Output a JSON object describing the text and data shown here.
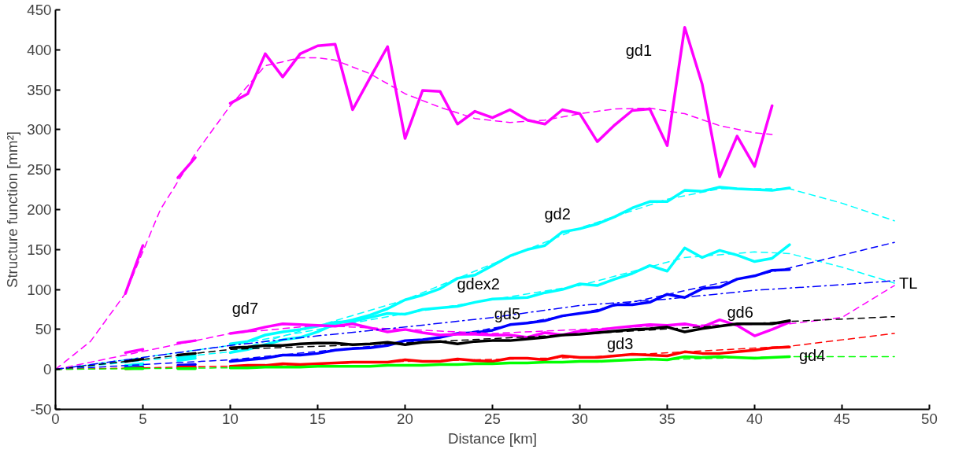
{
  "chart_data": {
    "type": "line",
    "xlabel": "Distance [km]",
    "ylabel": "Structure function [mm²]",
    "xlim": [
      0,
      50
    ],
    "xticks": [
      0,
      5,
      10,
      15,
      20,
      25,
      30,
      35,
      40,
      45,
      50
    ],
    "ylim": [
      -50,
      450
    ],
    "yticks": [
      -50,
      0,
      50,
      100,
      150,
      200,
      250,
      300,
      350,
      400,
      450
    ],
    "grid": false,
    "marker": "none",
    "series": [
      {
        "name": "gd1",
        "color": "#ff00ff",
        "line_style": "solid",
        "x": [
          10,
          11,
          12,
          13,
          14,
          15,
          16,
          17,
          18,
          19,
          20,
          21,
          22,
          23,
          24,
          25,
          26,
          27,
          28,
          29,
          30,
          31,
          32,
          33,
          34,
          35,
          36,
          37,
          38,
          39,
          40,
          41
        ],
        "values": [
          333,
          345,
          395,
          366,
          395,
          405,
          407,
          325,
          365,
          404,
          289,
          349,
          348,
          307,
          323,
          315,
          325,
          312,
          307,
          325,
          320,
          285,
          306,
          324,
          326,
          280,
          428,
          357,
          241,
          292,
          254,
          330
        ]
      },
      {
        "color": "#ff00ff",
        "line_style": "dashed",
        "x": [
          0,
          2,
          4,
          6,
          8,
          10,
          12,
          14,
          15,
          16,
          18,
          20,
          22,
          24,
          26,
          28,
          30,
          32,
          34,
          36,
          38,
          40,
          41
        ],
        "values": [
          0,
          35,
          95,
          200,
          270,
          330,
          380,
          390,
          390,
          387,
          370,
          345,
          328,
          314,
          309,
          312,
          320,
          326,
          327,
          320,
          305,
          296,
          294
        ]
      },
      {
        "color": "#ff00ff",
        "line_style": "solid",
        "x": [
          4,
          5
        ],
        "values": [
          95,
          155
        ]
      },
      {
        "color": "#ff00ff",
        "line_style": "solid",
        "x": [
          7,
          8
        ],
        "values": [
          240,
          265
        ]
      },
      {
        "name": "gd2",
        "color": "#00ffff",
        "line_style": "solid",
        "x": [
          10,
          11,
          12,
          13,
          14,
          15,
          16,
          17,
          18,
          19,
          20,
          21,
          22,
          23,
          24,
          25,
          26,
          27,
          28,
          29,
          30,
          31,
          32,
          33,
          34,
          35,
          36,
          37,
          38,
          39,
          40,
          41,
          42
        ],
        "values": [
          21,
          25,
          31,
          37,
          40,
          47,
          57,
          62,
          68,
          76,
          87,
          93,
          101,
          114,
          118,
          130,
          142,
          150,
          155,
          172,
          176,
          182,
          191,
          202,
          210,
          210,
          224,
          223,
          228,
          226,
          225,
          224,
          227
        ]
      },
      {
        "color": "#00ffff",
        "line_style": "dashed",
        "x": [
          0,
          10,
          20,
          30,
          35,
          38,
          42,
          45,
          48
        ],
        "values": [
          0,
          22,
          87,
          177,
          213,
          226,
          226,
          208,
          186
        ]
      },
      {
        "color": "#00ffff",
        "line_style": "solid",
        "x": [
          4,
          5
        ],
        "values": [
          3,
          6
        ]
      },
      {
        "color": "#00ffff",
        "line_style": "solid",
        "x": [
          7,
          8
        ],
        "values": [
          11,
          14
        ]
      },
      {
        "name": "gdex2",
        "color": "#00ffff",
        "line_style": "solid",
        "x": [
          10,
          11,
          12,
          13,
          14,
          15,
          16,
          17,
          18,
          19,
          20,
          21,
          22,
          23,
          24,
          25,
          26,
          27,
          28,
          29,
          30,
          31,
          32,
          33,
          34,
          35,
          36,
          37,
          38,
          39,
          40,
          41,
          42
        ],
        "values": [
          32,
          35,
          43,
          47,
          50,
          54,
          59,
          60,
          65,
          70,
          69,
          75,
          77,
          79,
          84,
          88,
          89,
          90,
          96,
          100,
          107,
          105,
          113,
          120,
          130,
          123,
          152,
          140,
          149,
          143,
          135,
          139,
          156
        ]
      },
      {
        "color": "#00ffff",
        "line_style": "dashed",
        "x": [
          0,
          10,
          20,
          30,
          36,
          40,
          42,
          45,
          48
        ],
        "values": [
          0,
          30,
          70,
          105,
          140,
          147,
          145,
          128,
          108
        ]
      },
      {
        "color": "#00ffff",
        "line_style": "solid",
        "x": [
          4,
          5
        ],
        "values": [
          5,
          7
        ]
      },
      {
        "color": "#00ffff",
        "line_style": "solid",
        "x": [
          7,
          8
        ],
        "values": [
          14,
          17
        ]
      },
      {
        "name": "gd5",
        "color": "#0000ff",
        "line_style": "solid",
        "x": [
          10,
          11,
          12,
          13,
          14,
          15,
          16,
          17,
          18,
          19,
          20,
          21,
          22,
          23,
          24,
          25,
          26,
          27,
          28,
          29,
          30,
          31,
          32,
          33,
          34,
          35,
          36,
          37,
          38,
          39,
          40,
          41,
          42
        ],
        "values": [
          10,
          12,
          14,
          18,
          18,
          20,
          24,
          26,
          27,
          30,
          36,
          37,
          40,
          45,
          46,
          49,
          56,
          58,
          61,
          67,
          70,
          73,
          81,
          81,
          84,
          94,
          90,
          101,
          103,
          113,
          117,
          124,
          125
        ]
      },
      {
        "color": "#0000ff",
        "line_style": "dashed",
        "x": [
          0,
          10,
          20,
          30,
          42,
          48
        ],
        "values": [
          0,
          12,
          33,
          70,
          127,
          159
        ]
      },
      {
        "color": "#0000ff",
        "line_style": "solid",
        "x": [
          4,
          5
        ],
        "values": [
          2,
          3
        ]
      },
      {
        "color": "#0000ff",
        "line_style": "solid",
        "x": [
          7,
          8
        ],
        "values": [
          5,
          6
        ]
      },
      {
        "name": "gd7",
        "color": "#ff00ff",
        "line_style": "solid",
        "x": [
          10,
          11,
          12,
          13,
          14,
          15,
          16,
          17,
          18,
          19,
          20,
          21,
          22,
          23,
          24,
          25,
          26,
          27,
          28,
          29,
          30,
          31,
          32,
          33,
          34,
          35,
          36,
          37,
          38,
          39,
          40,
          41,
          42
        ],
        "values": [
          45,
          48,
          53,
          57,
          56,
          55,
          54,
          57,
          52,
          47,
          50,
          46,
          43,
          44,
          44,
          43,
          43,
          40,
          46,
          43,
          48,
          49,
          52,
          54,
          56,
          55,
          57,
          53,
          62,
          55,
          42,
          50,
          59
        ]
      },
      {
        "color": "#ff00ff",
        "line_style": "dashed",
        "x": [
          0,
          10,
          15,
          25,
          35,
          42,
          45,
          48
        ],
        "values": [
          0,
          45,
          55,
          45,
          55,
          57,
          65,
          105
        ]
      },
      {
        "color": "#ff00ff",
        "line_style": "solid",
        "x": [
          4,
          5
        ],
        "values": [
          21,
          25
        ]
      },
      {
        "color": "#ff00ff",
        "line_style": "solid",
        "x": [
          7,
          8
        ],
        "values": [
          33,
          36
        ]
      },
      {
        "name": "gd6",
        "color": "#000000",
        "line_style": "solid",
        "x": [
          10,
          11,
          12,
          13,
          14,
          15,
          16,
          17,
          18,
          19,
          20,
          21,
          22,
          23,
          24,
          25,
          26,
          27,
          28,
          29,
          30,
          31,
          32,
          33,
          34,
          35,
          36,
          37,
          38,
          39,
          40,
          41,
          42
        ],
        "values": [
          27,
          28,
          30,
          30,
          32,
          33,
          33,
          31,
          32,
          34,
          31,
          34,
          35,
          32,
          35,
          36,
          36,
          38,
          40,
          43,
          44,
          46,
          48,
          50,
          51,
          53,
          47,
          51,
          54,
          57,
          57,
          57,
          61
        ]
      },
      {
        "color": "#000000",
        "line_style": "dashed",
        "x": [
          0,
          10,
          20,
          30,
          42,
          48
        ],
        "values": [
          0,
          25,
          33,
          44,
          60,
          66
        ]
      },
      {
        "color": "#000000",
        "line_style": "solid",
        "x": [
          4,
          5
        ],
        "values": [
          10,
          13
        ]
      },
      {
        "color": "#000000",
        "line_style": "solid",
        "x": [
          7,
          8
        ],
        "values": [
          18,
          20
        ]
      },
      {
        "name": "gd3",
        "color": "#ff0000",
        "line_style": "solid",
        "x": [
          10,
          11,
          12,
          13,
          14,
          15,
          16,
          17,
          18,
          19,
          20,
          21,
          22,
          23,
          24,
          25,
          26,
          27,
          28,
          29,
          30,
          31,
          32,
          33,
          34,
          35,
          36,
          37,
          38,
          39,
          40,
          41,
          42
        ],
        "values": [
          4,
          5,
          5,
          7,
          6,
          7,
          8,
          9,
          9,
          9,
          12,
          10,
          10,
          13,
          11,
          10,
          14,
          14,
          12,
          17,
          15,
          15,
          17,
          19,
          18,
          17,
          22,
          20,
          20,
          22,
          24,
          27,
          28
        ]
      },
      {
        "color": "#ff0000",
        "line_style": "dashed",
        "x": [
          0,
          10,
          20,
          30,
          42,
          48
        ],
        "values": [
          0,
          4,
          10,
          15,
          29,
          45
        ]
      },
      {
        "color": "#ff0000",
        "line_style": "solid",
        "x": [
          4,
          5
        ],
        "values": [
          1,
          2
        ]
      },
      {
        "color": "#ff0000",
        "line_style": "solid",
        "x": [
          7,
          8
        ],
        "values": [
          3,
          3
        ]
      },
      {
        "name": "gd4",
        "color": "#00ff00",
        "line_style": "solid",
        "x": [
          10,
          11,
          12,
          13,
          14,
          15,
          16,
          17,
          18,
          19,
          20,
          21,
          22,
          23,
          24,
          25,
          26,
          27,
          28,
          29,
          30,
          31,
          32,
          33,
          34,
          35,
          36,
          37,
          38,
          39,
          40,
          41,
          42
        ],
        "values": [
          2,
          2,
          3,
          3,
          3,
          4,
          4,
          4,
          4,
          5,
          5,
          5,
          6,
          6,
          7,
          7,
          8,
          8,
          9,
          9,
          10,
          10,
          11,
          12,
          13,
          12,
          16,
          15,
          16,
          15,
          14,
          15,
          16
        ]
      },
      {
        "color": "#00ff00",
        "line_style": "dashed",
        "x": [
          0,
          10,
          20,
          30,
          42,
          48
        ],
        "values": [
          0,
          2,
          5,
          10,
          16,
          16
        ]
      },
      {
        "color": "#00ff00",
        "line_style": "solid",
        "x": [
          4,
          5
        ],
        "values": [
          1,
          1
        ]
      },
      {
        "color": "#00ff00",
        "line_style": "solid",
        "x": [
          7,
          8
        ],
        "values": [
          1,
          1
        ]
      },
      {
        "name": "TL",
        "color": "#0000ff",
        "line_style": "dashdot",
        "x": [
          0,
          5,
          10,
          15,
          20,
          25,
          30,
          35,
          40,
          45,
          48
        ],
        "values": [
          0,
          15,
          30,
          42,
          53,
          65,
          80,
          88,
          99,
          106,
          111
        ]
      }
    ]
  }
}
